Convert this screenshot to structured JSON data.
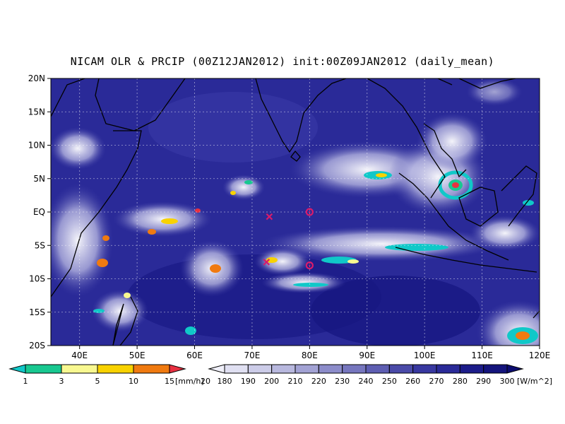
{
  "title": "NICAM OLR & PRCIP (00Z12JAN2012) init:00Z09JAN2012 (daily_mean)",
  "map": {
    "lat_labels": [
      "20N",
      "15N",
      "10N",
      "5N",
      "EQ",
      "5S",
      "10S",
      "15S",
      "20S"
    ],
    "lon_labels": [
      "40E",
      "50E",
      "60E",
      "70E",
      "80E",
      "90E",
      "100E",
      "110E",
      "120E"
    ],
    "lat_range": [
      -20,
      20
    ],
    "lon_range": [
      35,
      120
    ],
    "grid": "dotted",
    "markers": [
      {
        "symbol": "x",
        "lon": 73,
        "lat": -0.7,
        "color": "#d81b6b"
      },
      {
        "symbol": "x",
        "lon": 72.5,
        "lat": -7.5,
        "color": "#d81b6b"
      },
      {
        "symbol": "o",
        "lon": 80,
        "lat": 0,
        "color": "#d81b6b"
      },
      {
        "symbol": "o",
        "lon": 80,
        "lat": -8,
        "color": "#d81b6b"
      }
    ]
  },
  "precip_colorbar": {
    "unit": "[mm/h]",
    "labels": [
      "1",
      "3",
      "5",
      "10",
      "15",
      "20"
    ],
    "colors": [
      "#10c8c8",
      "#18c890",
      "#f8f890",
      "#f8d200",
      "#f07a10",
      "#e83040"
    ]
  },
  "olr_colorbar": {
    "unit": "[W/m^2]",
    "labels": [
      "180",
      "190",
      "200",
      "210",
      "220",
      "230",
      "240",
      "250",
      "260",
      "270",
      "280",
      "290",
      "300"
    ],
    "colors": [
      "#f0f0fa",
      "#e0e0f2",
      "#cccce8",
      "#b8b8de",
      "#a2a2d4",
      "#8c8cca",
      "#7676be",
      "#5e5eb2",
      "#4a4aa8",
      "#3838a0",
      "#2a2a98",
      "#1c1c8a",
      "#14147c",
      "#0c0c70"
    ]
  }
}
